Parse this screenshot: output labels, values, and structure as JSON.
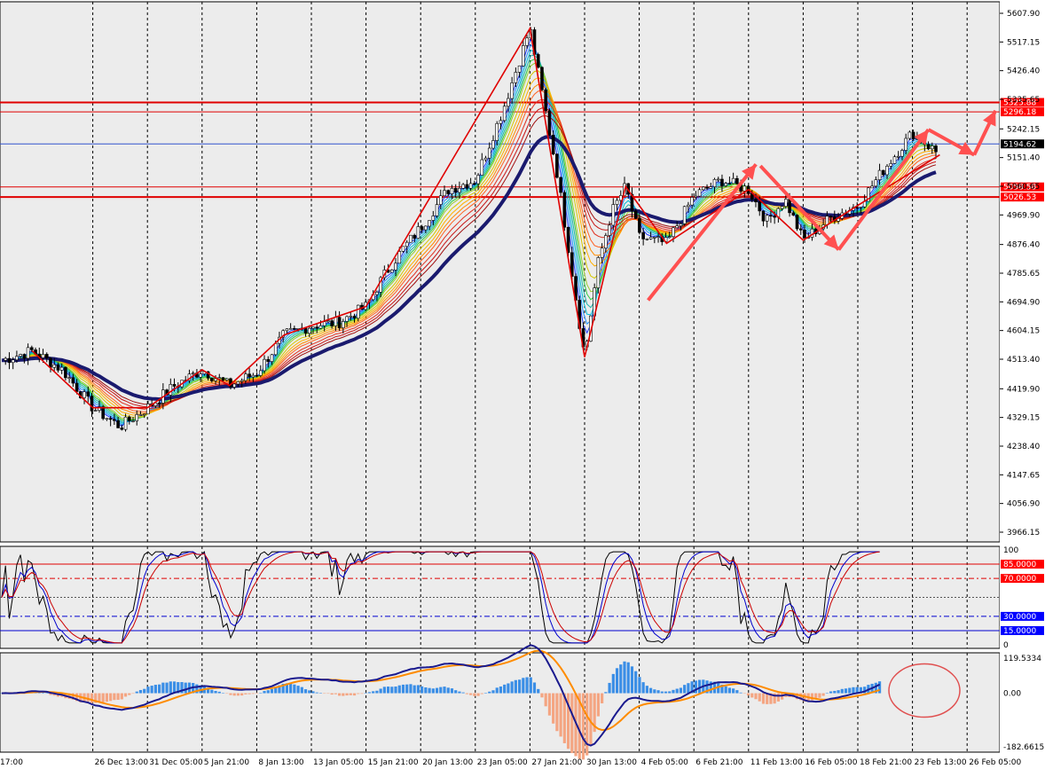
{
  "chart_data": [
    {
      "type": "candlestick",
      "title": "",
      "price_axis": {
        "ticks": [
          "5607.90",
          "5517.15",
          "5426.40",
          "5335.65",
          "5242.15",
          "5151.40",
          "5060.65",
          "4969.90",
          "4876.40",
          "4785.65",
          "4694.90",
          "4604.15",
          "4513.40",
          "4419.90",
          "4329.15",
          "4238.40",
          "4147.65",
          "4056.90",
          "3966.15"
        ],
        "range": [
          3966.15,
          5607.9
        ]
      },
      "price_labels": [
        {
          "value": "5325.88",
          "color": "#ff0000"
        },
        {
          "value": "5296.18",
          "color": "#ff0000"
        },
        {
          "value": "5194.62",
          "color": "#000000"
        },
        {
          "value": "5058.58",
          "color": "#ff0000"
        },
        {
          "value": "5026.53",
          "color": "#ff0000"
        }
      ],
      "horizontal_levels": [
        5325.88,
        5296.18,
        5194.62,
        5058.58,
        5026.53
      ],
      "approx_close_path": [
        {
          "x": "17:00",
          "y": 4510
        },
        {
          "x": "22 Dec",
          "y": 4540
        },
        {
          "x": "24 Dec",
          "y": 4480
        },
        {
          "x": "26 Dec 13:00",
          "y": 4360
        },
        {
          "x": "29 Dec",
          "y": 4300
        },
        {
          "x": "31 Dec 05:00",
          "y": 4360
        },
        {
          "x": "2 Jan",
          "y": 4430
        },
        {
          "x": "5 Jan 21:00",
          "y": 4480
        },
        {
          "x": "7 Jan",
          "y": 4430
        },
        {
          "x": "8 Jan 13:00",
          "y": 4470
        },
        {
          "x": "9 Jan",
          "y": 4590
        },
        {
          "x": "13 Jan 05:00",
          "y": 4620
        },
        {
          "x": "14 Jan",
          "y": 4630
        },
        {
          "x": "15 Jan 21:00",
          "y": 4680
        },
        {
          "x": "17 Jan",
          "y": 4780
        },
        {
          "x": "19 Jan",
          "y": 4860
        },
        {
          "x": "20 Jan 13:00",
          "y": 4930
        },
        {
          "x": "22 Jan",
          "y": 5050
        },
        {
          "x": "23 Jan 05:00",
          "y": 5080
        },
        {
          "x": "26 Jan",
          "y": 5300
        },
        {
          "x": "27 Jan 21:00",
          "y": 5560
        },
        {
          "x": "29 Jan",
          "y": 5100
        },
        {
          "x": "30 Jan 13:00",
          "y": 4520
        },
        {
          "x": "31 Jan",
          "y": 4820
        },
        {
          "x": "2 Feb",
          "y": 4980
        },
        {
          "x": "3 Feb",
          "y": 5060
        },
        {
          "x": "4 Feb 05:00",
          "y": 4900
        },
        {
          "x": "5 Feb",
          "y": 4880
        },
        {
          "x": "6 Feb 21:00",
          "y": 5030
        },
        {
          "x": "9 Feb",
          "y": 5080
        },
        {
          "x": "11 Feb 13:00",
          "y": 5050
        },
        {
          "x": "12 Feb",
          "y": 4950
        },
        {
          "x": "13 Feb",
          "y": 5020
        },
        {
          "x": "16 Feb 05:00",
          "y": 4890
        },
        {
          "x": "17 Feb",
          "y": 4960
        },
        {
          "x": "18 Feb 21:00",
          "y": 5000
        },
        {
          "x": "20 Feb",
          "y": 5120
        },
        {
          "x": "23 Feb 13:00",
          "y": 5230
        },
        {
          "x": "24 Feb",
          "y": 5160
        },
        {
          "x": "26 Feb 05:00",
          "y": 5190
        }
      ]
    },
    {
      "type": "line",
      "title": "",
      "axis_ticks": [
        "100",
        "0"
      ],
      "level_labels": [
        {
          "value": "85.0000",
          "color": "#ff0000"
        },
        {
          "value": "70.0000",
          "color": "#ff0000"
        },
        {
          "value": "30.0000",
          "color": "#0000ff"
        },
        {
          "value": "15.0000",
          "color": "#0000ff"
        }
      ],
      "levels": [
        85,
        70,
        50,
        30,
        15
      ],
      "range": [
        0,
        100
      ]
    },
    {
      "type": "bar",
      "title": "",
      "axis_ticks": [
        "119.5334",
        "0.00",
        "-182.6615"
      ],
      "range": [
        -182.6615,
        119.5334
      ]
    }
  ],
  "time_axis": [
    "17:00",
    "26 Dec 13:00",
    "31 Dec 05:00",
    "5 Jan 21:00",
    "8 Jan 13:00",
    "13 Jan 05:00",
    "15 Jan 21:00",
    "20 Jan 13:00",
    "23 Jan 05:00",
    "27 Jan 21:00",
    "30 Jan 13:00",
    "4 Feb 05:00",
    "6 Feb 21:00",
    "11 Feb 13:00",
    "16 Feb 05:00",
    "18 Feb 21:00",
    "23 Feb 13:00",
    "26 Feb 05:00"
  ]
}
